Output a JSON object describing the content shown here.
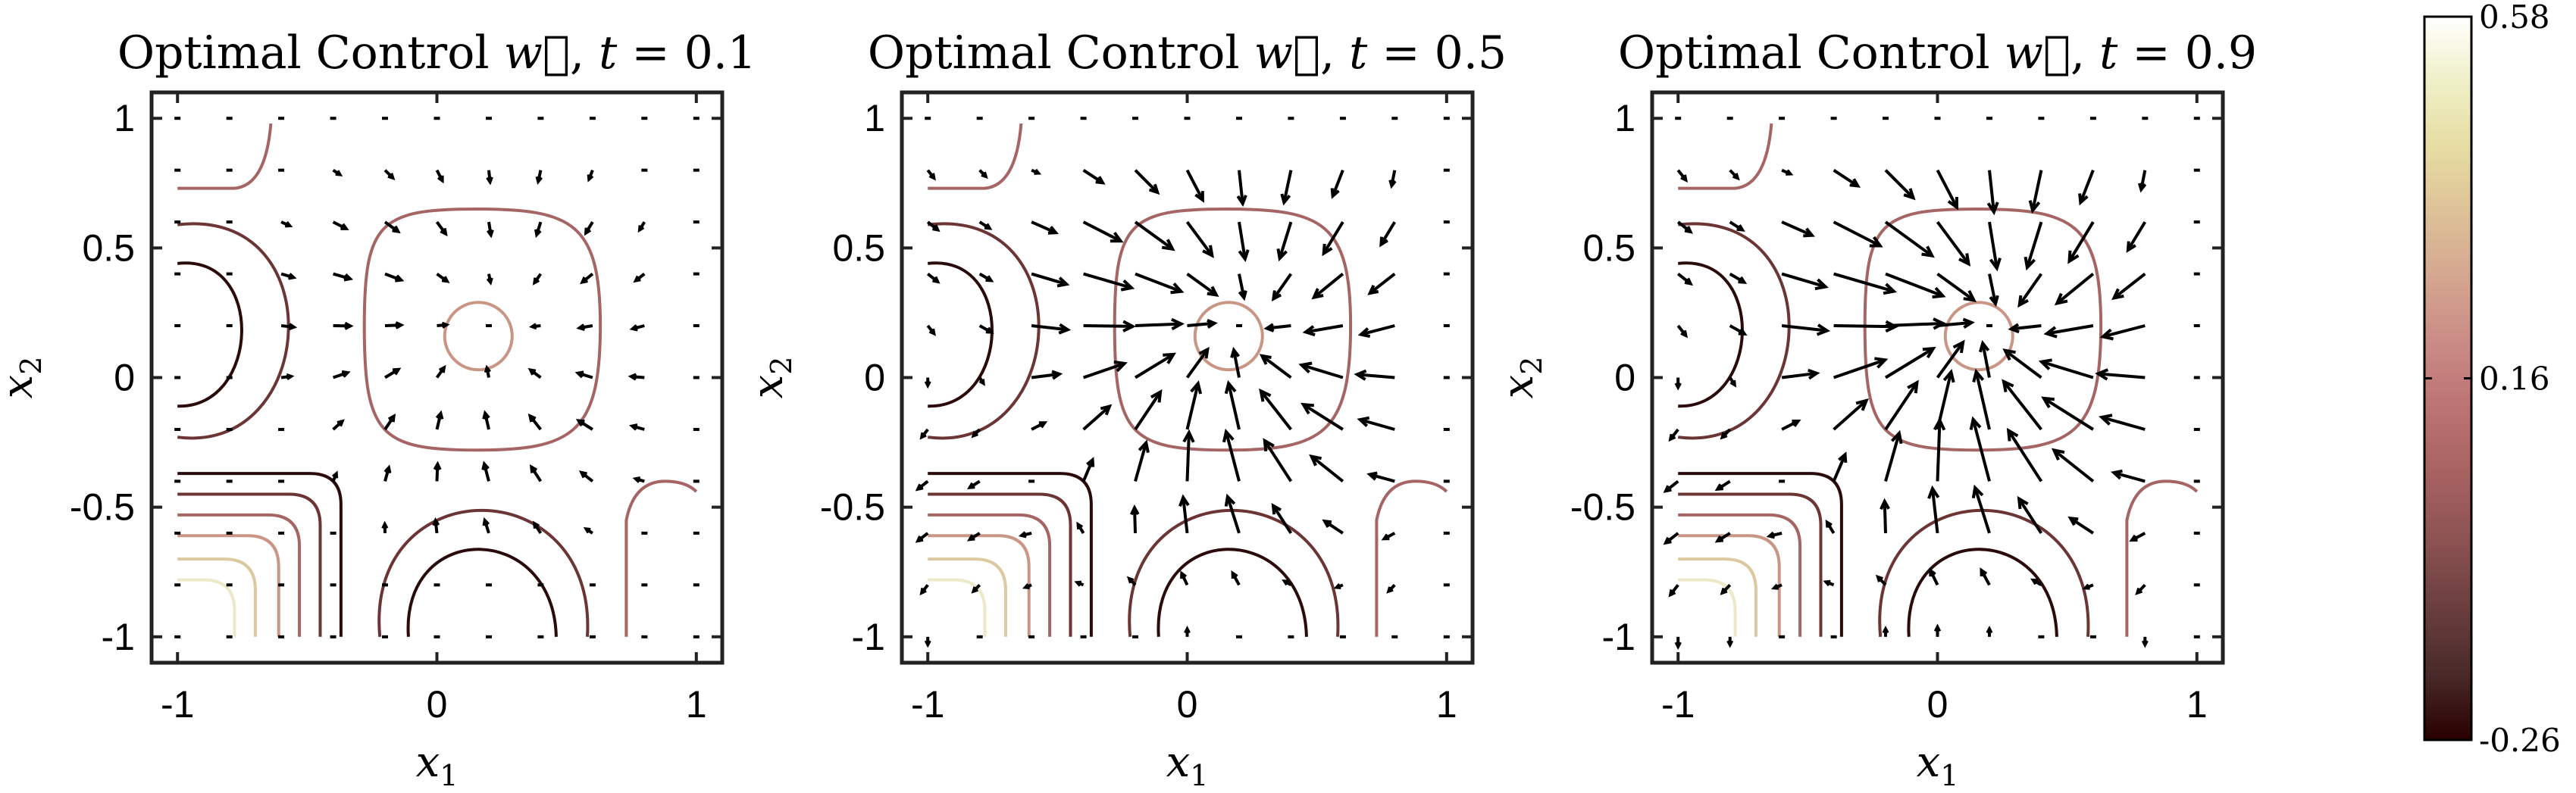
{
  "chart_data": [
    {
      "type": "contour+quiver",
      "title": "Optimal Control w⃗, t = 0.1",
      "title_parts": {
        "prefix": "Optimal Control ",
        "var": "w⃗",
        "sep": ", ",
        "tvar": "t",
        "tval": " = 0.1"
      },
      "t": 0.1,
      "xlabel": "x",
      "xlabel_sub": "1",
      "ylabel": "x",
      "ylabel_sub": "2",
      "xlim": [
        -1.1,
        1.1
      ],
      "ylim": [
        -1.1,
        1.1
      ],
      "xticks": [
        -1,
        0,
        1
      ],
      "yticks": [
        -1,
        -0.5,
        0,
        0.5,
        1
      ],
      "xtick_labels": [
        "-1",
        "0",
        "1"
      ],
      "ytick_labels": [
        "-1",
        "-0.5",
        "0",
        "0.5",
        "1"
      ],
      "arrow_scale": 0.35
    },
    {
      "type": "contour+quiver",
      "title": "Optimal Control w⃗, t = 0.5",
      "title_parts": {
        "prefix": "Optimal Control ",
        "var": "w⃗",
        "sep": ", ",
        "tvar": "t",
        "tval": " = 0.5"
      },
      "t": 0.5,
      "xlabel": "x",
      "xlabel_sub": "1",
      "ylabel": "x",
      "ylabel_sub": "2",
      "xlim": [
        -1.1,
        1.1
      ],
      "ylim": [
        -1.1,
        1.1
      ],
      "xticks": [
        -1,
        0,
        1
      ],
      "yticks": [
        -1,
        -0.5,
        0,
        0.5,
        1
      ],
      "xtick_labels": [
        "-1",
        "0",
        "1"
      ],
      "ytick_labels": [
        "-1",
        "-0.5",
        "0",
        "0.5",
        "1"
      ],
      "arrow_scale": 1.0
    },
    {
      "type": "contour+quiver",
      "title": "Optimal Control w⃗, t = 0.9",
      "title_parts": {
        "prefix": "Optimal Control ",
        "var": "w⃗",
        "sep": ", ",
        "tvar": "t",
        "tval": " = 0.9"
      },
      "t": 0.9,
      "xlabel": "x",
      "xlabel_sub": "1",
      "ylabel": "x",
      "ylabel_sub": "2",
      "xlim": [
        -1.1,
        1.1
      ],
      "ylim": [
        -1.1,
        1.1
      ],
      "xticks": [
        -1,
        0,
        1
      ],
      "yticks": [
        -1,
        -0.5,
        0,
        0.5,
        1
      ],
      "xtick_labels": [
        "-1",
        "0",
        "1"
      ],
      "ytick_labels": [
        "-1",
        "-0.5",
        "0",
        "0.5",
        "1"
      ],
      "arrow_scale": 1.25
    }
  ],
  "colorbar": {
    "min": -0.26,
    "max": 0.58,
    "tick_labels": [
      "0.58",
      "0.16",
      "-0.26"
    ],
    "tick_values": [
      0.58,
      0.16,
      -0.26
    ],
    "colors": [
      "#2a0000",
      "#4a2a2a",
      "#6b3e3e",
      "#8b5252",
      "#a66161",
      "#bb7272",
      "#c98a85",
      "#d4a58f",
      "#ddc097",
      "#e6dca2",
      "#efefc6",
      "#ffffff"
    ]
  },
  "contour_colors": {
    "dark": "#2a0a0a",
    "mid": "#6b3535",
    "light_mid": "#a66565",
    "tan": "#c99585",
    "beige": "#ddc9a0",
    "pale": "#ece9c8"
  }
}
